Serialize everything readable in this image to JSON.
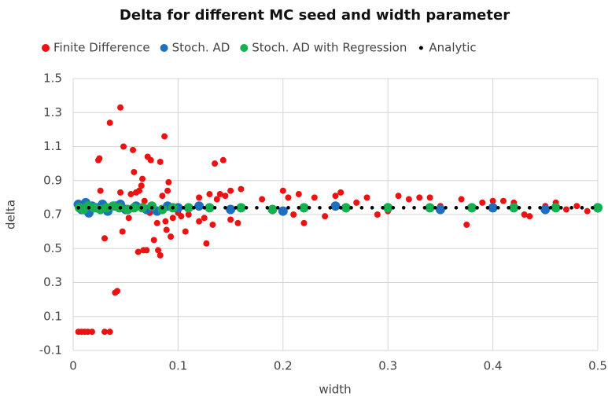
{
  "chart_data": {
    "type": "scatter",
    "title": "Delta for different MC seed and width parameter",
    "xlabel": "width",
    "ylabel": "delta",
    "xlim": [
      0,
      0.5
    ],
    "xticks": [
      0,
      0.1,
      0.2,
      0.3,
      0.4,
      0.5
    ],
    "ylim": [
      -0.1,
      1.5
    ],
    "yticks": [
      -0.1,
      0.1,
      0.3,
      0.5,
      0.7,
      0.9,
      1.1,
      1.3,
      1.5
    ],
    "grid": true,
    "legend": "top",
    "series": [
      {
        "name": "Finite Difference",
        "color": "#ee1111",
        "x": [
          0.005,
          0.008,
          0.011,
          0.014,
          0.018,
          0.03,
          0.035,
          0.024,
          0.025,
          0.026,
          0.03,
          0.035,
          0.04,
          0.042,
          0.045,
          0.045,
          0.047,
          0.048,
          0.053,
          0.055,
          0.057,
          0.058,
          0.06,
          0.062,
          0.063,
          0.065,
          0.066,
          0.067,
          0.068,
          0.07,
          0.071,
          0.073,
          0.074,
          0.077,
          0.08,
          0.081,
          0.083,
          0.083,
          0.085,
          0.087,
          0.088,
          0.089,
          0.09,
          0.091,
          0.093,
          0.095,
          0.1,
          0.103,
          0.107,
          0.11,
          0.12,
          0.12,
          0.125,
          0.127,
          0.13,
          0.133,
          0.135,
          0.137,
          0.14,
          0.143,
          0.145,
          0.15,
          0.15,
          0.157,
          0.16,
          0.18,
          0.19,
          0.2,
          0.205,
          0.21,
          0.215,
          0.22,
          0.23,
          0.24,
          0.25,
          0.255,
          0.27,
          0.28,
          0.29,
          0.3,
          0.31,
          0.32,
          0.33,
          0.34,
          0.35,
          0.37,
          0.375,
          0.39,
          0.4,
          0.41,
          0.42,
          0.43,
          0.435,
          0.45,
          0.46,
          0.47,
          0.48,
          0.49,
          0.5
        ],
        "values": [
          0.01,
          0.01,
          0.01,
          0.01,
          0.01,
          0.01,
          0.01,
          1.02,
          1.03,
          0.84,
          0.56,
          1.24,
          0.24,
          0.25,
          1.33,
          0.83,
          0.6,
          1.1,
          0.68,
          0.82,
          1.08,
          0.95,
          0.83,
          0.48,
          0.84,
          0.87,
          0.91,
          0.49,
          0.78,
          0.49,
          1.04,
          0.71,
          1.02,
          0.55,
          0.65,
          0.49,
          1.01,
          0.46,
          0.81,
          1.16,
          0.66,
          0.61,
          0.84,
          0.89,
          0.57,
          0.68,
          0.71,
          0.69,
          0.6,
          0.7,
          0.8,
          0.66,
          0.68,
          0.53,
          0.82,
          0.64,
          1.0,
          0.79,
          0.82,
          1.02,
          0.81,
          0.84,
          0.67,
          0.65,
          0.85,
          0.79,
          0.72,
          0.84,
          0.8,
          0.7,
          0.82,
          0.65,
          0.8,
          0.69,
          0.81,
          0.83,
          0.77,
          0.8,
          0.7,
          0.72,
          0.81,
          0.79,
          0.8,
          0.8,
          0.75,
          0.79,
          0.64,
          0.77,
          0.78,
          0.78,
          0.77,
          0.7,
          0.69,
          0.75,
          0.77,
          0.73,
          0.75,
          0.72,
          0.74
        ]
      },
      {
        "name": "Stoch. AD",
        "color": "#1f6fbf",
        "x": [
          0.005,
          0.008,
          0.012,
          0.015,
          0.018,
          0.022,
          0.028,
          0.033,
          0.04,
          0.045,
          0.05,
          0.06,
          0.07,
          0.08,
          0.09,
          0.1,
          0.12,
          0.15,
          0.2,
          0.25,
          0.3,
          0.35,
          0.4,
          0.45,
          0.5
        ],
        "values": [
          0.76,
          0.73,
          0.77,
          0.71,
          0.75,
          0.74,
          0.76,
          0.72,
          0.75,
          0.76,
          0.73,
          0.75,
          0.73,
          0.72,
          0.75,
          0.74,
          0.75,
          0.73,
          0.72,
          0.75,
          0.74,
          0.73,
          0.74,
          0.73,
          0.74
        ]
      },
      {
        "name": "Stoch. AD with Regression",
        "color": "#16b050",
        "x": [
          0.006,
          0.01,
          0.014,
          0.02,
          0.026,
          0.032,
          0.038,
          0.044,
          0.052,
          0.058,
          0.066,
          0.075,
          0.085,
          0.095,
          0.11,
          0.13,
          0.16,
          0.19,
          0.22,
          0.26,
          0.3,
          0.34,
          0.38,
          0.42,
          0.46,
          0.5
        ],
        "values": [
          0.74,
          0.73,
          0.75,
          0.74,
          0.73,
          0.74,
          0.75,
          0.74,
          0.73,
          0.74,
          0.74,
          0.75,
          0.73,
          0.74,
          0.74,
          0.74,
          0.74,
          0.73,
          0.74,
          0.74,
          0.74,
          0.74,
          0.74,
          0.74,
          0.74,
          0.74
        ]
      },
      {
        "name": "Analytic",
        "color": "#000000",
        "x": [
          0.005,
          0.015,
          0.025,
          0.035,
          0.045,
          0.055,
          0.065,
          0.075,
          0.085,
          0.095,
          0.105,
          0.115,
          0.125,
          0.135,
          0.145,
          0.155,
          0.165,
          0.175,
          0.185,
          0.195,
          0.205,
          0.215,
          0.225,
          0.235,
          0.245,
          0.255,
          0.265,
          0.275,
          0.285,
          0.295,
          0.305,
          0.315,
          0.325,
          0.335,
          0.345,
          0.355,
          0.365,
          0.375,
          0.385,
          0.395,
          0.405,
          0.415,
          0.425,
          0.435,
          0.445,
          0.455,
          0.465,
          0.475,
          0.485,
          0.495
        ],
        "values": [
          0.74,
          0.74,
          0.74,
          0.74,
          0.74,
          0.74,
          0.74,
          0.74,
          0.74,
          0.74,
          0.74,
          0.74,
          0.74,
          0.74,
          0.74,
          0.74,
          0.74,
          0.74,
          0.74,
          0.74,
          0.74,
          0.74,
          0.74,
          0.74,
          0.74,
          0.74,
          0.74,
          0.74,
          0.74,
          0.74,
          0.74,
          0.74,
          0.74,
          0.74,
          0.74,
          0.74,
          0.74,
          0.74,
          0.74,
          0.74,
          0.74,
          0.74,
          0.74,
          0.74,
          0.74,
          0.74,
          0.74,
          0.74,
          0.74,
          0.74
        ]
      }
    ]
  }
}
